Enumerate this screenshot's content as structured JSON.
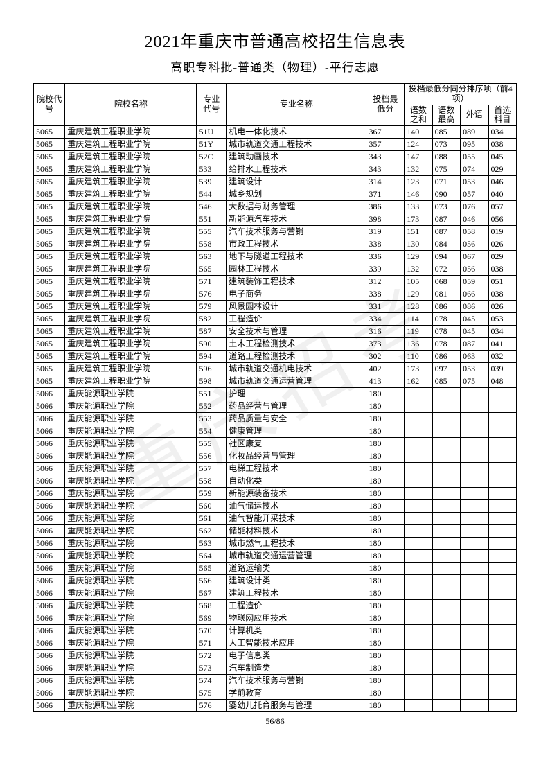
{
  "title": "2021年重庆市普通高校招生信息表",
  "subtitle": "高职专科批-普通类（物理）-平行志愿",
  "watermark": "重庆招考",
  "page_number": "56/86",
  "header": {
    "school_code": "院校代号",
    "school_name": "院校名称",
    "major_code": "专业代号",
    "major_name": "专业名称",
    "min_score": "投档最低分",
    "tiebreak_group": "投档最低分同分排序项（前4项）",
    "sub1": "语数之和",
    "sub2": "语数最高",
    "sub3": "外语",
    "sub4": "首选科目"
  },
  "rows": [
    [
      "5065",
      "重庆建筑工程职业学院",
      "51U",
      "机电一体化技术",
      "367",
      "140",
      "085",
      "089",
      "034"
    ],
    [
      "5065",
      "重庆建筑工程职业学院",
      "51Y",
      "城市轨道交通工程技术",
      "357",
      "124",
      "073",
      "095",
      "038"
    ],
    [
      "5065",
      "重庆建筑工程职业学院",
      "52C",
      "建筑动画技术",
      "343",
      "147",
      "088",
      "055",
      "045"
    ],
    [
      "5065",
      "重庆建筑工程职业学院",
      "533",
      "给排水工程技术",
      "343",
      "132",
      "075",
      "074",
      "029"
    ],
    [
      "5065",
      "重庆建筑工程职业学院",
      "539",
      "建筑设计",
      "314",
      "123",
      "071",
      "053",
      "046"
    ],
    [
      "5065",
      "重庆建筑工程职业学院",
      "544",
      "城乡规划",
      "371",
      "146",
      "090",
      "057",
      "040"
    ],
    [
      "5065",
      "重庆建筑工程职业学院",
      "546",
      "大数据与财务管理",
      "386",
      "133",
      "073",
      "076",
      "057"
    ],
    [
      "5065",
      "重庆建筑工程职业学院",
      "551",
      "新能源汽车技术",
      "398",
      "173",
      "087",
      "046",
      "056"
    ],
    [
      "5065",
      "重庆建筑工程职业学院",
      "555",
      "汽车技术服务与营销",
      "319",
      "151",
      "087",
      "058",
      "019"
    ],
    [
      "5065",
      "重庆建筑工程职业学院",
      "558",
      "市政工程技术",
      "338",
      "130",
      "084",
      "056",
      "026"
    ],
    [
      "5065",
      "重庆建筑工程职业学院",
      "563",
      "地下与隧道工程技术",
      "336",
      "129",
      "094",
      "067",
      "029"
    ],
    [
      "5065",
      "重庆建筑工程职业学院",
      "565",
      "园林工程技术",
      "339",
      "132",
      "072",
      "056",
      "038"
    ],
    [
      "5065",
      "重庆建筑工程职业学院",
      "571",
      "建筑装饰工程技术",
      "312",
      "105",
      "068",
      "059",
      "051"
    ],
    [
      "5065",
      "重庆建筑工程职业学院",
      "576",
      "电子商务",
      "338",
      "129",
      "081",
      "066",
      "038"
    ],
    [
      "5065",
      "重庆建筑工程职业学院",
      "579",
      "风景园林设计",
      "331",
      "128",
      "086",
      "086",
      "026"
    ],
    [
      "5065",
      "重庆建筑工程职业学院",
      "582",
      "工程造价",
      "334",
      "114",
      "078",
      "045",
      "053"
    ],
    [
      "5065",
      "重庆建筑工程职业学院",
      "587",
      "安全技术与管理",
      "316",
      "119",
      "078",
      "045",
      "034"
    ],
    [
      "5065",
      "重庆建筑工程职业学院",
      "590",
      "土木工程检测技术",
      "373",
      "136",
      "078",
      "087",
      "041"
    ],
    [
      "5065",
      "重庆建筑工程职业学院",
      "594",
      "道路工程检测技术",
      "302",
      "110",
      "086",
      "063",
      "032"
    ],
    [
      "5065",
      "重庆建筑工程职业学院",
      "596",
      "城市轨道交通机电技术",
      "402",
      "173",
      "097",
      "053",
      "039"
    ],
    [
      "5065",
      "重庆建筑工程职业学院",
      "598",
      "城市轨道交通运营管理",
      "413",
      "162",
      "085",
      "075",
      "048"
    ],
    [
      "5066",
      "重庆能源职业学院",
      "551",
      "护理",
      "180",
      "",
      "",
      "",
      ""
    ],
    [
      "5066",
      "重庆能源职业学院",
      "552",
      "药品经营与管理",
      "180",
      "",
      "",
      "",
      ""
    ],
    [
      "5066",
      "重庆能源职业学院",
      "553",
      "药品质量与安全",
      "180",
      "",
      "",
      "",
      ""
    ],
    [
      "5066",
      "重庆能源职业学院",
      "554",
      "健康管理",
      "180",
      "",
      "",
      "",
      ""
    ],
    [
      "5066",
      "重庆能源职业学院",
      "555",
      "社区康复",
      "180",
      "",
      "",
      "",
      ""
    ],
    [
      "5066",
      "重庆能源职业学院",
      "556",
      "化妆品经营与管理",
      "180",
      "",
      "",
      "",
      ""
    ],
    [
      "5066",
      "重庆能源职业学院",
      "557",
      "电梯工程技术",
      "180",
      "",
      "",
      "",
      ""
    ],
    [
      "5066",
      "重庆能源职业学院",
      "558",
      "自动化类",
      "180",
      "",
      "",
      "",
      ""
    ],
    [
      "5066",
      "重庆能源职业学院",
      "559",
      "新能源装备技术",
      "180",
      "",
      "",
      "",
      ""
    ],
    [
      "5066",
      "重庆能源职业学院",
      "560",
      "油气储运技术",
      "180",
      "",
      "",
      "",
      ""
    ],
    [
      "5066",
      "重庆能源职业学院",
      "561",
      "油气智能开采技术",
      "180",
      "",
      "",
      "",
      ""
    ],
    [
      "5066",
      "重庆能源职业学院",
      "562",
      "储能材料技术",
      "180",
      "",
      "",
      "",
      ""
    ],
    [
      "5066",
      "重庆能源职业学院",
      "563",
      "城市燃气工程技术",
      "180",
      "",
      "",
      "",
      ""
    ],
    [
      "5066",
      "重庆能源职业学院",
      "564",
      "城市轨道交通运营管理",
      "180",
      "",
      "",
      "",
      ""
    ],
    [
      "5066",
      "重庆能源职业学院",
      "565",
      "道路运输类",
      "180",
      "",
      "",
      "",
      ""
    ],
    [
      "5066",
      "重庆能源职业学院",
      "566",
      "建筑设计类",
      "180",
      "",
      "",
      "",
      ""
    ],
    [
      "5066",
      "重庆能源职业学院",
      "567",
      "建筑工程技术",
      "180",
      "",
      "",
      "",
      ""
    ],
    [
      "5066",
      "重庆能源职业学院",
      "568",
      "工程造价",
      "180",
      "",
      "",
      "",
      ""
    ],
    [
      "5066",
      "重庆能源职业学院",
      "569",
      "物联网应用技术",
      "180",
      "",
      "",
      "",
      ""
    ],
    [
      "5066",
      "重庆能源职业学院",
      "570",
      "计算机类",
      "180",
      "",
      "",
      "",
      ""
    ],
    [
      "5066",
      "重庆能源职业学院",
      "571",
      "人工智能技术应用",
      "180",
      "",
      "",
      "",
      ""
    ],
    [
      "5066",
      "重庆能源职业学院",
      "572",
      "电子信息类",
      "180",
      "",
      "",
      "",
      ""
    ],
    [
      "5066",
      "重庆能源职业学院",
      "573",
      "汽车制造类",
      "180",
      "",
      "",
      "",
      ""
    ],
    [
      "5066",
      "重庆能源职业学院",
      "574",
      "汽车技术服务与营销",
      "180",
      "",
      "",
      "",
      ""
    ],
    [
      "5066",
      "重庆能源职业学院",
      "575",
      "学前教育",
      "180",
      "",
      "",
      "",
      ""
    ],
    [
      "5066",
      "重庆能源职业学院",
      "576",
      "婴幼儿托育服务与管理",
      "180",
      "",
      "",
      "",
      ""
    ]
  ]
}
